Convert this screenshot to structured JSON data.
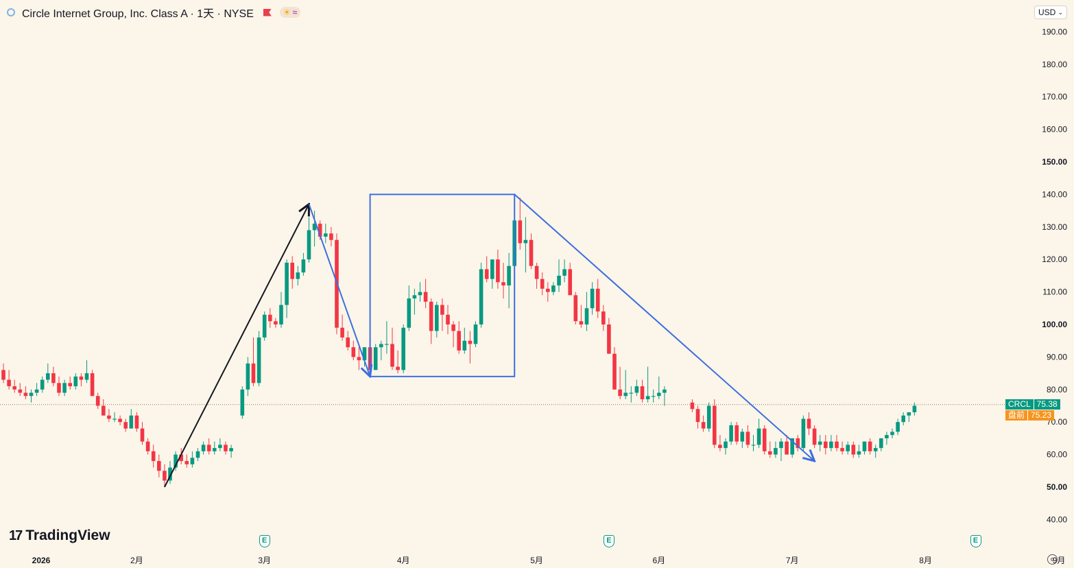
{
  "header": {
    "title": "Circle Internet Group, Inc. Class A · 1天 · NYSE",
    "currency": "USD"
  },
  "brand": {
    "name": "TradingView"
  },
  "price_tags": {
    "symbol": "CRCL",
    "last": "75.38",
    "premarket_label": "盘前",
    "premarket": "75.23"
  },
  "colors": {
    "up": "#089981",
    "down": "#f23645",
    "drawing": "#3b6fe0",
    "background": "#fcf5e9"
  },
  "chart_data": {
    "type": "candlestick",
    "symbol": "CRCL",
    "interval": "1天",
    "y_range": [
      35,
      195
    ],
    "y_ticks": [
      "40.00",
      "50.00",
      "60.00",
      "70.00",
      "80.00",
      "90.00",
      "100.00",
      "110.00",
      "120.00",
      "130.00",
      "140.00",
      "150.00",
      "160.00",
      "170.00",
      "180.00",
      "190.00"
    ],
    "y_ticks_bold": [
      "50.00",
      "100.00",
      "150.00"
    ],
    "x_labels": [
      "2026",
      "2月",
      "3月",
      "4月",
      "5月",
      "6月",
      "7月",
      "8月",
      "9月"
    ],
    "x_label_index": [
      -1,
      24,
      47,
      72,
      96,
      118,
      142,
      166,
      190
    ],
    "earnings_markers_index": [
      47,
      109,
      175
    ],
    "last_price": 75.38,
    "premarket_price": 75.23,
    "candles": [
      [
        86,
        88,
        82,
        83
      ],
      [
        83,
        86,
        80,
        81
      ],
      [
        81,
        83,
        79,
        80
      ],
      [
        80,
        82,
        78,
        79
      ],
      [
        79,
        81,
        77,
        78
      ],
      [
        78,
        80,
        76,
        79
      ],
      [
        79,
        82,
        78,
        80
      ],
      [
        80,
        84,
        79,
        83
      ],
      [
        83,
        88,
        82,
        85
      ],
      [
        85,
        87,
        81,
        82
      ],
      [
        82,
        84,
        78,
        79
      ],
      [
        79,
        83,
        78,
        82
      ],
      [
        82,
        84,
        80,
        81
      ],
      [
        81,
        85,
        80,
        84
      ],
      [
        84,
        85,
        81,
        83
      ],
      [
        83,
        89,
        82,
        85
      ],
      [
        85,
        86,
        78,
        78
      ],
      [
        78,
        79,
        74,
        75
      ],
      [
        75,
        77,
        72,
        72
      ],
      [
        72,
        74,
        70,
        71
      ],
      [
        71,
        73,
        70,
        71
      ],
      [
        71,
        72,
        69,
        70
      ],
      [
        70,
        71,
        67,
        68
      ],
      [
        68,
        74,
        68,
        72
      ],
      [
        72,
        73,
        67,
        68
      ],
      [
        68,
        70,
        63,
        64
      ],
      [
        64,
        65,
        60,
        61
      ],
      [
        61,
        63,
        56,
        58
      ],
      [
        58,
        60,
        53,
        55
      ],
      [
        55,
        57,
        50,
        52
      ],
      [
        52,
        58,
        51,
        56
      ],
      [
        56,
        61,
        55,
        60
      ],
      [
        60,
        62,
        57,
        58
      ],
      [
        58,
        60,
        56,
        57
      ],
      [
        57,
        61,
        56,
        59
      ],
      [
        59,
        62,
        58,
        61
      ],
      [
        61,
        64,
        60,
        63
      ],
      [
        63,
        65,
        60,
        61
      ],
      [
        61,
        64,
        60,
        62
      ],
      [
        62,
        65,
        61,
        63
      ],
      [
        63,
        64,
        60,
        61
      ],
      [
        61,
        63,
        59,
        62
      ],
      [
        72,
        81,
        71,
        80
      ],
      [
        80,
        90,
        78,
        88
      ],
      [
        88,
        96,
        81,
        82
      ],
      [
        82,
        98,
        81,
        96
      ],
      [
        96,
        104,
        95,
        103
      ],
      [
        103,
        105,
        99,
        101
      ],
      [
        101,
        102,
        99,
        100
      ],
      [
        100,
        110,
        99,
        106
      ],
      [
        106,
        120,
        102,
        119
      ],
      [
        119,
        121,
        111,
        114
      ],
      [
        114,
        118,
        112,
        116
      ],
      [
        116,
        122,
        115,
        120
      ],
      [
        120,
        133,
        119,
        129
      ],
      [
        129,
        135,
        124,
        131
      ],
      [
        131,
        132,
        126,
        127
      ],
      [
        127,
        131,
        125,
        128
      ],
      [
        128,
        130,
        124,
        126
      ],
      [
        126,
        128,
        97,
        99
      ],
      [
        99,
        103,
        95,
        96
      ],
      [
        96,
        98,
        92,
        93
      ],
      [
        93,
        95,
        89,
        90
      ],
      [
        90,
        93,
        86,
        89
      ],
      [
        89,
        93,
        87,
        93
      ],
      [
        93,
        96,
        86,
        86
      ],
      [
        86,
        94,
        86,
        93
      ],
      [
        93,
        95,
        89,
        94
      ],
      [
        94,
        101,
        91,
        94
      ],
      [
        94,
        99,
        86,
        87
      ],
      [
        87,
        92,
        85,
        86
      ],
      [
        86,
        100,
        85,
        99
      ],
      [
        99,
        112,
        98,
        108
      ],
      [
        108,
        111,
        103,
        109
      ],
      [
        109,
        113,
        107,
        110
      ],
      [
        110,
        114,
        105,
        107
      ],
      [
        107,
        108,
        94,
        98
      ],
      [
        98,
        107,
        96,
        106
      ],
      [
        106,
        108,
        98,
        103
      ],
      [
        103,
        106,
        97,
        100
      ],
      [
        100,
        101,
        93,
        98
      ],
      [
        98,
        101,
        91,
        92
      ],
      [
        92,
        99,
        91,
        95
      ],
      [
        95,
        98,
        88,
        94
      ],
      [
        94,
        101,
        93,
        100
      ],
      [
        100,
        119,
        99,
        117
      ],
      [
        117,
        121,
        113,
        114
      ],
      [
        114,
        119,
        111,
        120
      ],
      [
        120,
        123,
        111,
        113
      ],
      [
        113,
        119,
        108,
        112
      ],
      [
        112,
        122,
        105,
        118
      ],
      [
        118,
        135,
        114,
        132
      ],
      [
        132,
        139,
        123,
        125
      ],
      [
        125,
        133,
        116,
        126
      ],
      [
        126,
        128,
        117,
        118
      ],
      [
        118,
        119,
        111,
        114
      ],
      [
        114,
        116,
        109,
        111
      ],
      [
        111,
        113,
        107,
        110
      ],
      [
        110,
        113,
        109,
        112
      ],
      [
        112,
        120,
        110,
        115
      ],
      [
        115,
        120,
        113,
        117
      ],
      [
        117,
        119,
        110,
        109
      ],
      [
        109,
        110,
        100,
        101
      ],
      [
        101,
        106,
        99,
        100
      ],
      [
        100,
        110,
        98,
        105
      ],
      [
        105,
        113,
        103,
        111
      ],
      [
        111,
        114,
        102,
        104
      ],
      [
        104,
        106,
        98,
        100
      ],
      [
        100,
        102,
        91,
        91
      ],
      [
        91,
        93,
        80,
        80
      ],
      [
        80,
        87,
        77,
        78
      ],
      [
        78,
        86,
        77,
        79
      ],
      [
        79,
        81,
        76,
        79
      ],
      [
        79,
        83,
        78,
        81
      ],
      [
        81,
        83,
        76,
        77
      ],
      [
        77,
        87,
        76,
        78
      ],
      [
        78,
        80,
        76,
        78
      ],
      [
        78,
        84,
        77,
        79
      ],
      [
        79,
        81,
        75,
        80
      ]
    ],
    "candles_gap_after_index": 41,
    "annotations": [
      {
        "type": "arrow",
        "from": [
          29,
          50
        ],
        "to": [
          55,
          137
        ],
        "color": "#131722"
      },
      {
        "type": "arrow",
        "from": [
          55,
          137
        ],
        "to": [
          66,
          84
        ],
        "color": "#3b6fe0"
      },
      {
        "type": "rectangle",
        "from": [
          66,
          140
        ],
        "to": [
          92,
          84
        ],
        "color": "#3b6fe0"
      },
      {
        "type": "arrow",
        "from": [
          92,
          140
        ],
        "to": [
          146,
          58
        ],
        "color": "#3b6fe0"
      }
    ],
    "late_candles": [
      [
        76,
        77,
        73,
        74
      ],
      [
        74,
        75,
        68,
        70
      ],
      [
        70,
        72,
        67,
        68
      ],
      [
        68,
        76,
        67,
        75
      ],
      [
        75,
        77,
        62,
        63
      ],
      [
        63,
        66,
        61,
        62
      ],
      [
        62,
        65,
        60,
        64
      ],
      [
        64,
        70,
        63,
        69
      ],
      [
        69,
        70,
        63,
        64
      ],
      [
        64,
        68,
        62,
        67
      ],
      [
        67,
        69,
        62,
        63
      ],
      [
        63,
        66,
        61,
        63
      ],
      [
        63,
        71,
        62,
        68
      ],
      [
        68,
        69,
        60,
        61
      ],
      [
        61,
        64,
        59,
        60
      ],
      [
        60,
        64,
        59,
        62
      ],
      [
        62,
        65,
        58,
        64
      ],
      [
        64,
        66,
        60,
        60
      ],
      [
        60,
        65,
        59,
        65
      ],
      [
        65,
        66,
        61,
        62
      ],
      [
        62,
        72,
        61,
        71
      ],
      [
        71,
        73,
        66,
        68
      ],
      [
        68,
        69,
        62,
        63
      ],
      [
        63,
        66,
        61,
        64
      ],
      [
        64,
        66,
        60,
        62
      ],
      [
        62,
        66,
        61,
        64
      ],
      [
        64,
        66,
        61,
        62
      ],
      [
        62,
        64,
        60,
        61
      ],
      [
        61,
        64,
        60,
        63
      ],
      [
        63,
        64,
        59,
        60
      ],
      [
        60,
        63,
        59,
        61
      ],
      [
        61,
        64,
        60,
        64
      ],
      [
        64,
        65,
        60,
        61
      ],
      [
        61,
        63,
        59,
        62
      ],
      [
        62,
        65,
        61,
        65
      ],
      [
        65,
        67,
        63,
        66
      ],
      [
        66,
        68,
        65,
        67
      ],
      [
        67,
        71,
        66,
        70
      ],
      [
        70,
        73,
        69,
        72
      ],
      [
        72,
        73,
        70,
        73
      ],
      [
        73,
        76,
        72,
        75
      ]
    ],
    "late_start_index": 124
  }
}
